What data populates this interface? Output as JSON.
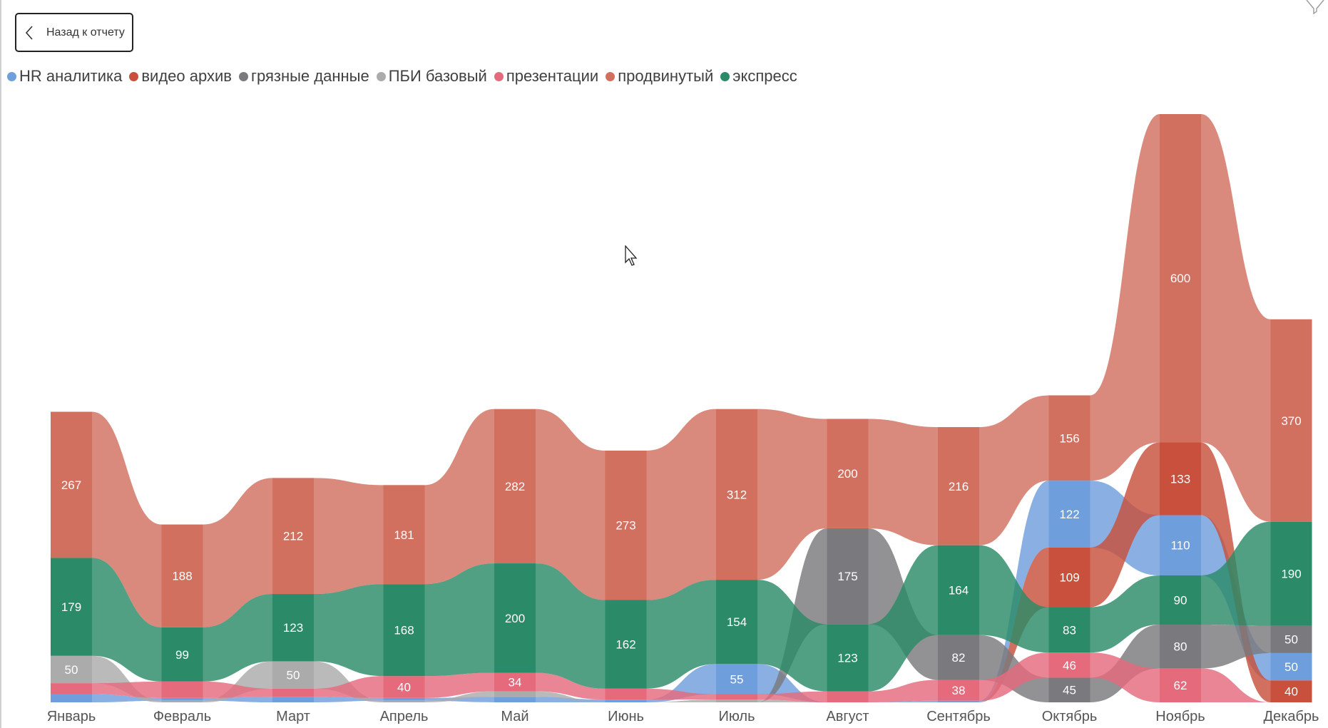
{
  "back_button": {
    "label": "Назад к отчету",
    "icon": "chevron-left-icon"
  },
  "filter_icon": "filter-icon",
  "legend_items": [
    {
      "name": "HR аналитика",
      "color": "#6f9edd"
    },
    {
      "name": "видео архив",
      "color": "#c8503d"
    },
    {
      "name": "грязные данные",
      "color": "#7a7a7e"
    },
    {
      "name": "ПБИ базовый",
      "color": "#ababab"
    },
    {
      "name": "презентации",
      "color": "#e46a7c"
    },
    {
      "name": "продвинутый",
      "color": "#d2705f"
    },
    {
      "name": "экспресс",
      "color": "#2b8b68"
    }
  ],
  "chart_data": {
    "type": "ribbon",
    "title": "",
    "xlabel": "",
    "ylabel": "",
    "categories": [
      "Январь",
      "Февраль",
      "Март",
      "Апрель",
      "Май",
      "Июнь",
      "Июль",
      "Август",
      "Сентябрь",
      "Октябрь",
      "Ноябрь",
      "Декабрь"
    ],
    "series": [
      {
        "name": "HR аналитика",
        "color": "#6f9edd",
        "values": [
          15,
          5,
          10,
          5,
          10,
          5,
          55,
          0,
          3,
          122,
          110,
          50
        ]
      },
      {
        "name": "видео архив",
        "color": "#c8503d",
        "values": [
          0,
          0,
          0,
          0,
          0,
          0,
          0,
          0,
          0,
          109,
          133,
          40
        ]
      },
      {
        "name": "грязные данные",
        "color": "#7a7a7e",
        "values": [
          0,
          0,
          0,
          0,
          0,
          0,
          0,
          175,
          82,
          45,
          80,
          50
        ]
      },
      {
        "name": "ПБИ базовый",
        "color": "#ababab",
        "values": [
          50,
          3,
          50,
          3,
          10,
          0,
          5,
          0,
          0,
          0,
          0,
          0
        ]
      },
      {
        "name": "презентации",
        "color": "#e46a7c",
        "values": [
          20,
          30,
          15,
          40,
          34,
          20,
          10,
          20,
          38,
          46,
          62,
          0
        ]
      },
      {
        "name": "продвинутый",
        "color": "#d2705f",
        "values": [
          267,
          188,
          212,
          181,
          282,
          273,
          312,
          200,
          216,
          156,
          600,
          370
        ]
      },
      {
        "name": "экспресс",
        "color": "#2b8b68",
        "values": [
          179,
          99,
          123,
          168,
          200,
          162,
          154,
          123,
          164,
          83,
          90,
          190
        ]
      }
    ],
    "data_labels": [
      [
        null,
        null,
        null,
        50,
        null,
        267,
        179
      ],
      [
        null,
        null,
        null,
        null,
        null,
        188,
        99
      ],
      [
        null,
        null,
        null,
        50,
        null,
        212,
        123
      ],
      [
        null,
        null,
        null,
        null,
        40,
        181,
        168
      ],
      [
        null,
        null,
        null,
        null,
        34,
        282,
        200
      ],
      [
        null,
        null,
        null,
        null,
        null,
        273,
        162
      ],
      [
        55,
        null,
        null,
        null,
        null,
        312,
        154
      ],
      [
        null,
        null,
        175,
        null,
        null,
        200,
        123
      ],
      [
        null,
        null,
        82,
        null,
        38,
        216,
        164
      ],
      [
        122,
        109,
        45,
        null,
        46,
        156,
        83
      ],
      [
        110,
        133,
        80,
        null,
        62,
        600,
        90
      ],
      [
        50,
        40,
        50,
        null,
        null,
        370,
        190
      ]
    ],
    "legend_position": "top-left",
    "grid": false
  }
}
